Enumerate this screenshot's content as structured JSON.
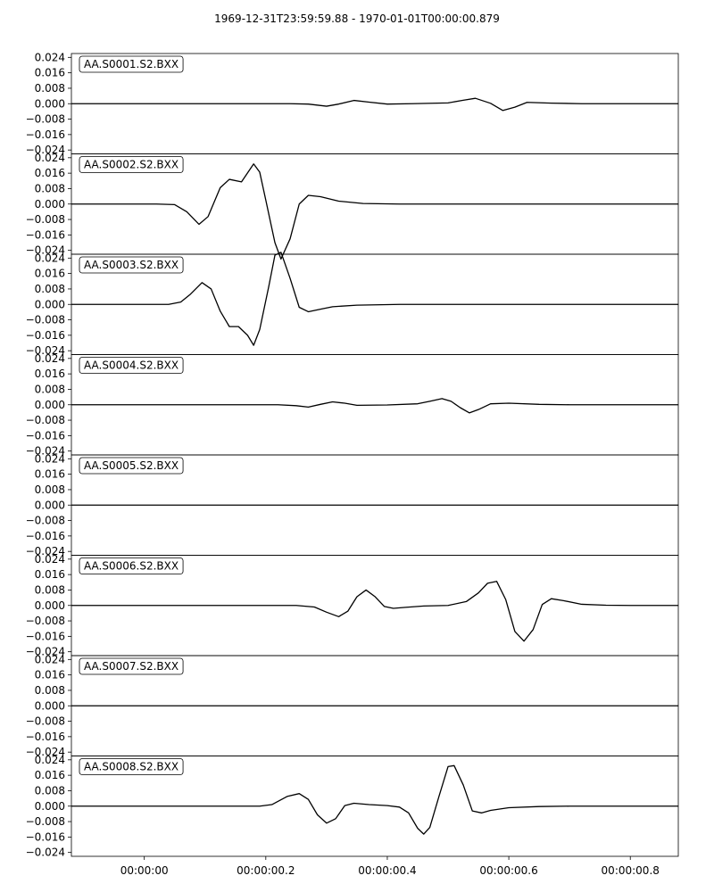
{
  "chart_title": "1969-12-31T23:59:59.88  -  1970-01-01T00:00:00.879",
  "chart_data": {
    "type": "line",
    "title": "1969-12-31T23:59:59.88  -  1970-01-01T00:00:00.879",
    "x_range_seconds": [
      -0.12,
      0.879
    ],
    "x_ticks": [
      {
        "value": 0.0,
        "label": "00:00:00"
      },
      {
        "value": 0.2,
        "label": "00:00:00.2"
      },
      {
        "value": 0.4,
        "label": "00:00:00.4"
      },
      {
        "value": 0.6,
        "label": "00:00:00.6"
      },
      {
        "value": 0.8,
        "label": "00:00:00.8"
      }
    ],
    "ylim": [
      -0.026,
      0.026
    ],
    "y_ticks": [
      {
        "value": 0.024,
        "label": "0.024"
      },
      {
        "value": 0.016,
        "label": "0.016"
      },
      {
        "value": 0.008,
        "label": "0.008"
      },
      {
        "value": 0.0,
        "label": "0.000"
      },
      {
        "value": -0.008,
        "label": "−0.008"
      },
      {
        "value": -0.016,
        "label": "−0.016"
      },
      {
        "value": -0.024,
        "label": "−0.024"
      }
    ],
    "grid": false,
    "line_color": "#000000",
    "panels": [
      {
        "name": "AA.S0001.S2.BXX",
        "points": [
          [
            -0.12,
            0
          ],
          [
            0.24,
            0
          ],
          [
            0.27,
            -0.0002
          ],
          [
            0.3,
            -0.0013
          ],
          [
            0.32,
            -0.0002
          ],
          [
            0.345,
            0.0017
          ],
          [
            0.37,
            0.0008
          ],
          [
            0.4,
            -0.0002
          ],
          [
            0.44,
            0
          ],
          [
            0.5,
            0.0004
          ],
          [
            0.525,
            0.0018
          ],
          [
            0.545,
            0.0028
          ],
          [
            0.57,
            0.0002
          ],
          [
            0.59,
            -0.0035
          ],
          [
            0.61,
            -0.0018
          ],
          [
            0.63,
            0.0007
          ],
          [
            0.67,
            0.0003
          ],
          [
            0.72,
            0
          ],
          [
            0.879,
            0
          ]
        ]
      },
      {
        "name": "AA.S0002.S2.BXX",
        "points": [
          [
            -0.12,
            0
          ],
          [
            0.02,
            0
          ],
          [
            0.05,
            -0.0003
          ],
          [
            0.07,
            -0.004
          ],
          [
            0.09,
            -0.0105
          ],
          [
            0.105,
            -0.0065
          ],
          [
            0.125,
            0.0085
          ],
          [
            0.14,
            0.0128
          ],
          [
            0.16,
            0.0115
          ],
          [
            0.18,
            0.0208
          ],
          [
            0.19,
            0.0165
          ],
          [
            0.2,
            0.002
          ],
          [
            0.215,
            -0.02
          ],
          [
            0.225,
            -0.0285
          ],
          [
            0.24,
            -0.018
          ],
          [
            0.255,
            0.0
          ],
          [
            0.27,
            0.0045
          ],
          [
            0.29,
            0.0038
          ],
          [
            0.32,
            0.0015
          ],
          [
            0.36,
            0.0003
          ],
          [
            0.42,
            0
          ],
          [
            0.879,
            0
          ]
        ]
      },
      {
        "name": "AA.S0003.S2.BXX",
        "points": [
          [
            -0.12,
            0
          ],
          [
            0.04,
            0
          ],
          [
            0.06,
            0.0012
          ],
          [
            0.075,
            0.005
          ],
          [
            0.095,
            0.0113
          ],
          [
            0.11,
            0.008
          ],
          [
            0.125,
            -0.0035
          ],
          [
            0.14,
            -0.0115
          ],
          [
            0.155,
            -0.0115
          ],
          [
            0.17,
            -0.016
          ],
          [
            0.18,
            -0.0212
          ],
          [
            0.19,
            -0.013
          ],
          [
            0.205,
            0.0095
          ],
          [
            0.215,
            0.0255
          ],
          [
            0.225,
            0.027
          ],
          [
            0.24,
            0.0135
          ],
          [
            0.255,
            -0.0015
          ],
          [
            0.27,
            -0.0038
          ],
          [
            0.29,
            -0.0025
          ],
          [
            0.31,
            -0.0012
          ],
          [
            0.35,
            -0.0004
          ],
          [
            0.42,
            0
          ],
          [
            0.879,
            0
          ]
        ]
      },
      {
        "name": "AA.S0004.S2.BXX",
        "points": [
          [
            -0.12,
            0
          ],
          [
            0.22,
            0
          ],
          [
            0.25,
            -0.0005
          ],
          [
            0.27,
            -0.0012
          ],
          [
            0.29,
            0.0002
          ],
          [
            0.31,
            0.0015
          ],
          [
            0.33,
            0.0008
          ],
          [
            0.35,
            -0.0003
          ],
          [
            0.4,
            -0.0001
          ],
          [
            0.45,
            0.0005
          ],
          [
            0.47,
            0.0018
          ],
          [
            0.49,
            0.0032
          ],
          [
            0.505,
            0.0018
          ],
          [
            0.52,
            -0.0015
          ],
          [
            0.535,
            -0.0042
          ],
          [
            0.55,
            -0.0025
          ],
          [
            0.57,
            0.0005
          ],
          [
            0.6,
            0.0008
          ],
          [
            0.65,
            0.0002
          ],
          [
            0.7,
            0
          ],
          [
            0.879,
            0
          ]
        ]
      },
      {
        "name": "AA.S0005.S2.BXX",
        "points": [
          [
            -0.12,
            0
          ],
          [
            0.879,
            0
          ]
        ]
      },
      {
        "name": "AA.S0006.S2.BXX",
        "points": [
          [
            -0.12,
            0
          ],
          [
            0.25,
            0
          ],
          [
            0.28,
            -0.0008
          ],
          [
            0.3,
            -0.0035
          ],
          [
            0.32,
            -0.0058
          ],
          [
            0.335,
            -0.003
          ],
          [
            0.35,
            0.0045
          ],
          [
            0.365,
            0.008
          ],
          [
            0.38,
            0.0045
          ],
          [
            0.395,
            -0.0005
          ],
          [
            0.41,
            -0.0015
          ],
          [
            0.43,
            -0.001
          ],
          [
            0.46,
            -0.0003
          ],
          [
            0.5,
            0
          ],
          [
            0.53,
            0.002
          ],
          [
            0.55,
            0.0065
          ],
          [
            0.565,
            0.0115
          ],
          [
            0.58,
            0.0125
          ],
          [
            0.595,
            0.003
          ],
          [
            0.61,
            -0.0135
          ],
          [
            0.625,
            -0.0185
          ],
          [
            0.64,
            -0.0125
          ],
          [
            0.655,
            0.0005
          ],
          [
            0.67,
            0.0035
          ],
          [
            0.69,
            0.0025
          ],
          [
            0.72,
            0.0006
          ],
          [
            0.76,
            0.0001
          ],
          [
            0.8,
            0
          ],
          [
            0.879,
            0
          ]
        ]
      },
      {
        "name": "AA.S0007.S2.BXX",
        "points": [
          [
            -0.12,
            0
          ],
          [
            0.879,
            0
          ]
        ]
      },
      {
        "name": "AA.S0008.S2.BXX",
        "points": [
          [
            -0.12,
            0
          ],
          [
            0.19,
            0
          ],
          [
            0.21,
            0.0008
          ],
          [
            0.235,
            0.005
          ],
          [
            0.255,
            0.0065
          ],
          [
            0.27,
            0.0035
          ],
          [
            0.285,
            -0.0045
          ],
          [
            0.3,
            -0.0088
          ],
          [
            0.315,
            -0.0065
          ],
          [
            0.33,
            0.0003
          ],
          [
            0.345,
            0.0015
          ],
          [
            0.37,
            0.0008
          ],
          [
            0.4,
            0.0003
          ],
          [
            0.42,
            -0.0005
          ],
          [
            0.435,
            -0.0035
          ],
          [
            0.45,
            -0.0115
          ],
          [
            0.46,
            -0.0145
          ],
          [
            0.47,
            -0.011
          ],
          [
            0.485,
            0.005
          ],
          [
            0.5,
            0.0205
          ],
          [
            0.51,
            0.021
          ],
          [
            0.525,
            0.011
          ],
          [
            0.54,
            -0.0025
          ],
          [
            0.555,
            -0.0035
          ],
          [
            0.57,
            -0.0022
          ],
          [
            0.6,
            -0.0008
          ],
          [
            0.65,
            -0.0002
          ],
          [
            0.7,
            0
          ],
          [
            0.879,
            0
          ]
        ]
      }
    ]
  }
}
